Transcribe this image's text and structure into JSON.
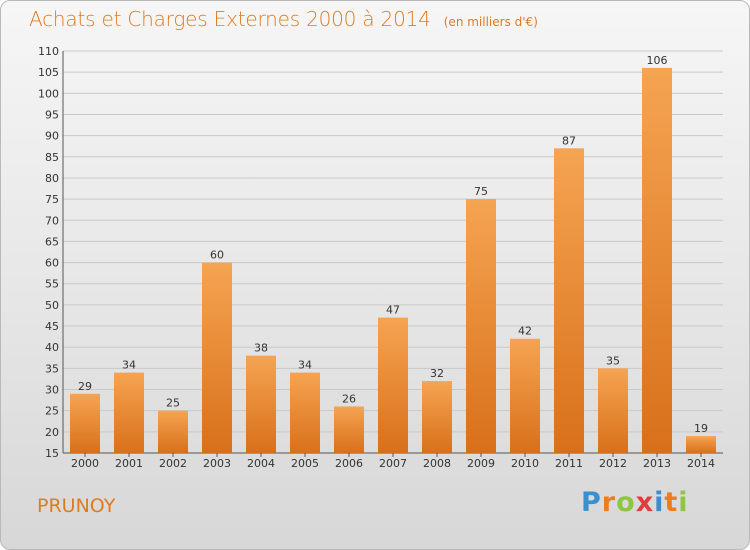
{
  "header": {
    "title": "Achats et Charges Externes 2000 à 2014",
    "unit": "(en milliers d'€)"
  },
  "footer": {
    "commune": "PRUNOY",
    "logo_parts": [
      "P",
      "r",
      "o",
      "x",
      "i",
      "t",
      "i"
    ]
  },
  "colors": {
    "accent": "#e07b1d",
    "bar_top": "#f5a452",
    "bar_bottom": "#d8701a",
    "grid": "#c9c9c9"
  },
  "chart_data": {
    "type": "bar",
    "categories": [
      "2000",
      "2001",
      "2002",
      "2003",
      "2004",
      "2005",
      "2006",
      "2007",
      "2008",
      "2009",
      "2010",
      "2011",
      "2012",
      "2013",
      "2014"
    ],
    "values": [
      29,
      34,
      25,
      60,
      38,
      34,
      26,
      47,
      32,
      75,
      42,
      87,
      35,
      106,
      19
    ],
    "title": "Achats et Charges Externes 2000 à 2014",
    "ylim": [
      15,
      110
    ],
    "yticks": [
      15,
      20,
      25,
      30,
      35,
      40,
      45,
      50,
      55,
      60,
      65,
      70,
      75,
      80,
      85,
      90,
      95,
      100,
      105,
      110
    ],
    "grid": true,
    "data_labels": true
  }
}
